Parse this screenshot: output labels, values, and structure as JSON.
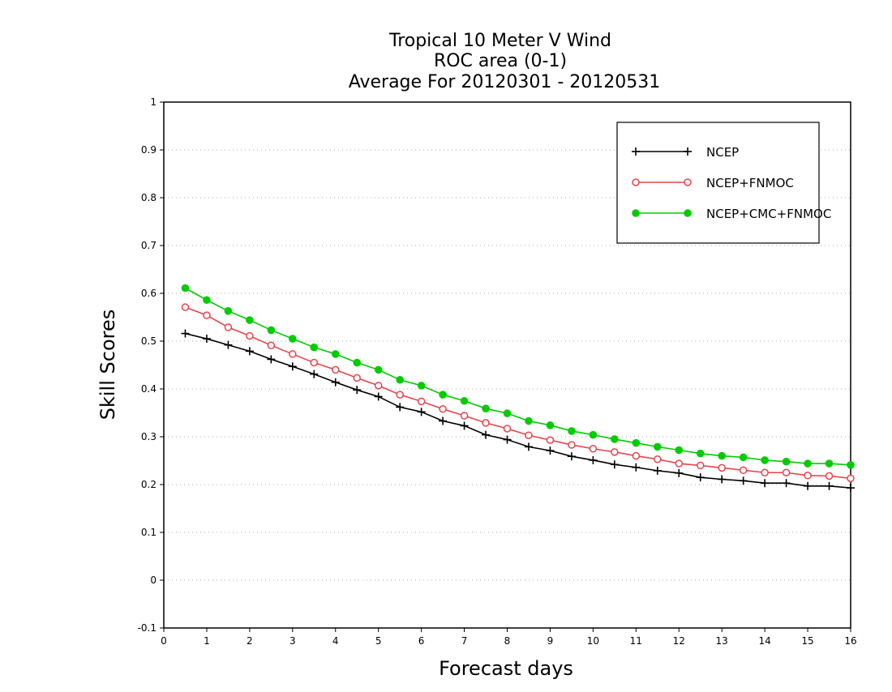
{
  "chart_data": {
    "type": "line",
    "title_lines": [
      "Tropical 10 Meter V Wind",
      "ROC area (0-1)",
      "Average For 20120301 - 20120531"
    ],
    "xlabel": "Forecast days",
    "ylabel": "Skill Scores",
    "xlim": [
      0,
      16
    ],
    "ylim": [
      -0.1,
      1
    ],
    "x_ticks": [
      "0",
      "1",
      "2",
      "3",
      "4",
      "5",
      "6",
      "7",
      "8",
      "9",
      "10",
      "11",
      "12",
      "13",
      "14",
      "15",
      "16"
    ],
    "y_ticks": [
      "-0.1",
      "0",
      "0.1",
      "0.2",
      "0.3",
      "0.4",
      "0.5",
      "0.6",
      "0.7",
      "0.8",
      "0.9",
      "1"
    ],
    "grid": "horizontal dotted",
    "legend_position": "top-right",
    "x": [
      0.5,
      1,
      1.5,
      2,
      2.5,
      3,
      3.5,
      4,
      4.5,
      5,
      5.5,
      6,
      6.5,
      7,
      7.5,
      8,
      8.5,
      9,
      9.5,
      10,
      10.5,
      11,
      11.5,
      12,
      12.5,
      13,
      13.5,
      14,
      14.5,
      15,
      15.5,
      16
    ],
    "series": [
      {
        "name": "NCEP",
        "color": "#000000",
        "marker": "plus",
        "values": [
          0.516,
          0.505,
          0.492,
          0.479,
          0.462,
          0.447,
          0.431,
          0.414,
          0.398,
          0.384,
          0.362,
          0.352,
          0.333,
          0.323,
          0.304,
          0.294,
          0.279,
          0.271,
          0.259,
          0.251,
          0.242,
          0.236,
          0.229,
          0.224,
          0.215,
          0.211,
          0.208,
          0.203,
          0.203,
          0.197,
          0.197,
          0.193
        ]
      },
      {
        "name": "NCEP+FNMOC",
        "color": "#e8434b",
        "marker": "open-circle",
        "values": [
          0.571,
          0.554,
          0.529,
          0.511,
          0.491,
          0.473,
          0.455,
          0.44,
          0.423,
          0.407,
          0.388,
          0.374,
          0.358,
          0.344,
          0.329,
          0.317,
          0.303,
          0.293,
          0.283,
          0.275,
          0.268,
          0.26,
          0.253,
          0.244,
          0.24,
          0.235,
          0.23,
          0.225,
          0.225,
          0.219,
          0.218,
          0.213
        ]
      },
      {
        "name": "NCEP+CMC+FNMOC",
        "color": "#00cc00",
        "marker": "filled-circle",
        "values": [
          0.611,
          0.586,
          0.563,
          0.544,
          0.523,
          0.505,
          0.487,
          0.473,
          0.455,
          0.44,
          0.419,
          0.407,
          0.388,
          0.375,
          0.359,
          0.349,
          0.333,
          0.324,
          0.312,
          0.304,
          0.295,
          0.287,
          0.279,
          0.272,
          0.265,
          0.26,
          0.257,
          0.251,
          0.248,
          0.244,
          0.244,
          0.241
        ]
      }
    ]
  }
}
